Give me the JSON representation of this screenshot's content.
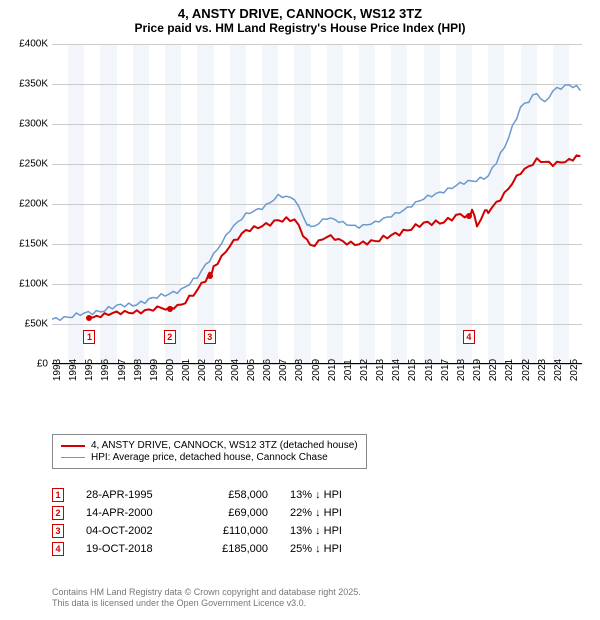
{
  "title": {
    "line1": "4, ANSTY DRIVE, CANNOCK, WS12 3TZ",
    "line2": "Price paid vs. HM Land Registry's House Price Index (HPI)"
  },
  "chart": {
    "type": "line",
    "background_color": "#ffffff",
    "alt_band_color": "#f2f6fa",
    "grid_color": "#cccccc",
    "x_range": [
      1993,
      2025.8
    ],
    "x_ticks": [
      1993,
      1994,
      1995,
      1996,
      1997,
      1998,
      1999,
      2000,
      2001,
      2002,
      2003,
      2004,
      2005,
      2006,
      2007,
      2008,
      2009,
      2010,
      2011,
      2012,
      2013,
      2014,
      2015,
      2016,
      2017,
      2018,
      2019,
      2020,
      2021,
      2022,
      2023,
      2024,
      2025
    ],
    "y_range": [
      0,
      400000
    ],
    "y_ticks": [
      0,
      50000,
      100000,
      150000,
      200000,
      250000,
      300000,
      350000,
      400000
    ],
    "y_tick_labels": [
      "£0",
      "£50K",
      "£100K",
      "£150K",
      "£200K",
      "£250K",
      "£300K",
      "£350K",
      "£400K"
    ],
    "series": {
      "price_paid": {
        "color": "#d00000",
        "width": 2,
        "points": [
          [
            1995.3,
            58000
          ],
          [
            1996,
            60000
          ],
          [
            1997,
            62000
          ],
          [
            1998,
            64000
          ],
          [
            1999,
            67000
          ],
          [
            2000.3,
            69000
          ],
          [
            2001,
            75000
          ],
          [
            2002,
            90000
          ],
          [
            2002.75,
            110000
          ],
          [
            2003,
            120000
          ],
          [
            2004,
            148000
          ],
          [
            2005,
            165000
          ],
          [
            2006,
            172000
          ],
          [
            2007,
            180000
          ],
          [
            2008,
            178000
          ],
          [
            2008.8,
            155000
          ],
          [
            2009,
            148000
          ],
          [
            2010,
            158000
          ],
          [
            2011,
            152000
          ],
          [
            2012,
            150000
          ],
          [
            2013,
            152000
          ],
          [
            2014,
            160000
          ],
          [
            2015,
            168000
          ],
          [
            2016,
            173000
          ],
          [
            2017,
            178000
          ],
          [
            2018,
            183000
          ],
          [
            2018.8,
            185000
          ],
          [
            2019,
            192000
          ],
          [
            2019.3,
            175000
          ],
          [
            2019.8,
            190000
          ],
          [
            2020,
            192000
          ],
          [
            2021,
            210000
          ],
          [
            2022,
            240000
          ],
          [
            2023,
            255000
          ],
          [
            2024,
            248000
          ],
          [
            2025,
            255000
          ],
          [
            2025.7,
            262000
          ]
        ]
      },
      "hpi": {
        "color": "#6a99d0",
        "width": 1.5,
        "points": [
          [
            1993,
            55000
          ],
          [
            1994,
            57000
          ],
          [
            1995,
            62000
          ],
          [
            1996,
            66000
          ],
          [
            1997,
            70000
          ],
          [
            1998,
            74000
          ],
          [
            1999,
            79000
          ],
          [
            2000,
            85000
          ],
          [
            2001,
            92000
          ],
          [
            2002,
            108000
          ],
          [
            2003,
            135000
          ],
          [
            2004,
            168000
          ],
          [
            2005,
            185000
          ],
          [
            2006,
            195000
          ],
          [
            2007,
            210000
          ],
          [
            2008,
            205000
          ],
          [
            2008.8,
            175000
          ],
          [
            2009,
            170000
          ],
          [
            2010,
            182000
          ],
          [
            2011,
            175000
          ],
          [
            2012,
            172000
          ],
          [
            2013,
            175000
          ],
          [
            2014,
            185000
          ],
          [
            2015,
            195000
          ],
          [
            2016,
            205000
          ],
          [
            2017,
            215000
          ],
          [
            2018,
            222000
          ],
          [
            2019,
            228000
          ],
          [
            2020,
            235000
          ],
          [
            2021,
            270000
          ],
          [
            2022,
            320000
          ],
          [
            2023,
            340000
          ],
          [
            2023.5,
            325000
          ],
          [
            2024,
            340000
          ],
          [
            2025,
            350000
          ],
          [
            2025.7,
            345000
          ]
        ]
      }
    },
    "markers": [
      {
        "n": "1",
        "year": 1995.32,
        "box_y": 22000,
        "dot_y": 58000
      },
      {
        "n": "2",
        "year": 2000.29,
        "box_y": 22000,
        "dot_y": 69000
      },
      {
        "n": "3",
        "year": 2002.76,
        "box_y": 22000,
        "dot_y": 110000
      },
      {
        "n": "4",
        "year": 2018.8,
        "box_y": 22000,
        "dot_y": 185000
      }
    ]
  },
  "legend": {
    "items": [
      {
        "color": "#d00000",
        "width": 2,
        "label": "4, ANSTY DRIVE, CANNOCK, WS12 3TZ (detached house)"
      },
      {
        "color": "#6a99d0",
        "width": 1.5,
        "label": "HPI: Average price, detached house, Cannock Chase"
      }
    ]
  },
  "sales": [
    {
      "n": "1",
      "date": "28-APR-1995",
      "price": "£58,000",
      "diff": "13% ↓ HPI"
    },
    {
      "n": "2",
      "date": "14-APR-2000",
      "price": "£69,000",
      "diff": "22% ↓ HPI"
    },
    {
      "n": "3",
      "date": "04-OCT-2002",
      "price": "£110,000",
      "diff": "13% ↓ HPI"
    },
    {
      "n": "4",
      "date": "19-OCT-2018",
      "price": "£185,000",
      "diff": "25% ↓ HPI"
    }
  ],
  "footer": {
    "line1": "Contains HM Land Registry data © Crown copyright and database right 2025.",
    "line2": "This data is licensed under the Open Government Licence v3.0."
  }
}
